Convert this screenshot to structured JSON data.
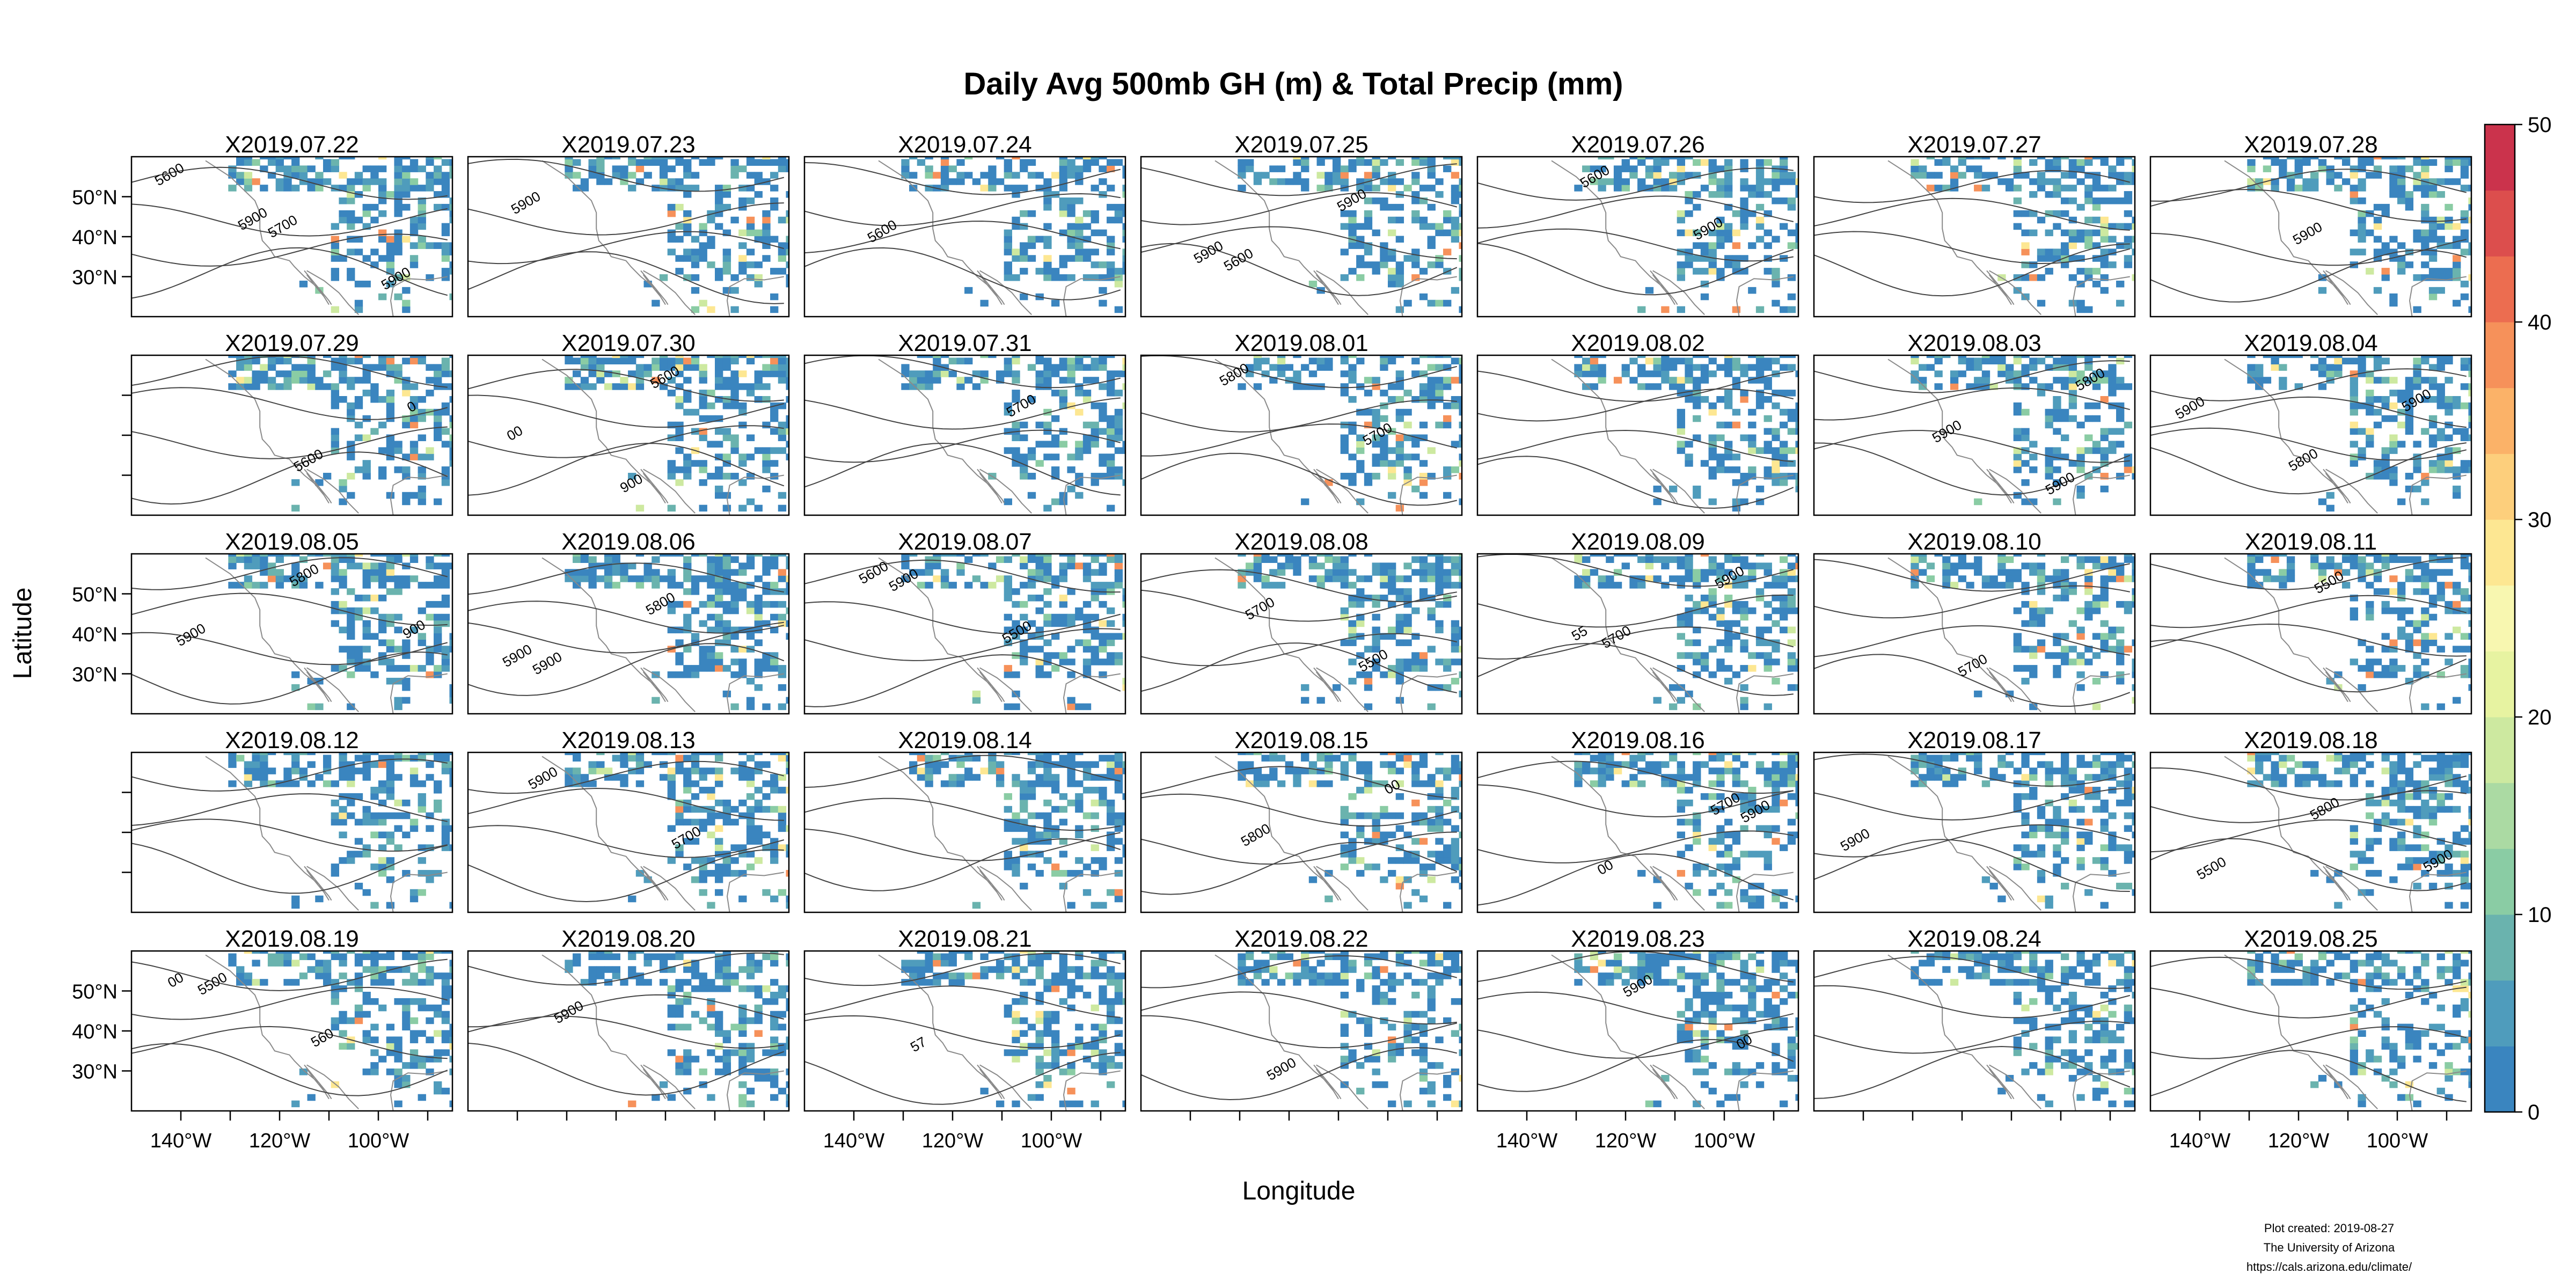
{
  "chart_data": {
    "type": "heatmap",
    "title": "Daily Avg 500mb GH (m) & Total Precip (mm)",
    "xlabel": "Longitude",
    "ylabel": "Latitude",
    "layout": {
      "rows": 5,
      "cols": 7
    },
    "panels": [
      "X2019.07.22",
      "X2019.07.23",
      "X2019.07.24",
      "X2019.07.25",
      "X2019.07.26",
      "X2019.07.27",
      "X2019.07.28",
      "X2019.07.29",
      "X2019.07.30",
      "X2019.07.31",
      "X2019.08.01",
      "X2019.08.02",
      "X2019.08.03",
      "X2019.08.04",
      "X2019.08.05",
      "X2019.08.06",
      "X2019.08.07",
      "X2019.08.08",
      "X2019.08.09",
      "X2019.08.10",
      "X2019.08.11",
      "X2019.08.12",
      "X2019.08.13",
      "X2019.08.14",
      "X2019.08.15",
      "X2019.08.16",
      "X2019.08.17",
      "X2019.08.18",
      "X2019.08.19",
      "X2019.08.20",
      "X2019.08.21",
      "X2019.08.22",
      "X2019.08.23",
      "X2019.08.24",
      "X2019.08.25"
    ],
    "x_range": [
      -150,
      -85
    ],
    "y_range": [
      20,
      60
    ],
    "x_ticks": [
      -140,
      -120,
      -100
    ],
    "x_tick_labels": [
      "140°W",
      "120°W",
      "100°W"
    ],
    "y_ticks": [
      30,
      40,
      50
    ],
    "y_tick_labels": [
      "30°N",
      "40°N",
      "50°N"
    ],
    "contour_labels": [
      [
        "5600",
        "5700",
        "5900",
        "5900"
      ],
      [
        "5900"
      ],
      [
        "5600"
      ],
      [
        "5600",
        "5900",
        "5900"
      ],
      [
        "5600",
        "5900"
      ],
      [],
      [
        "5900"
      ],
      [
        "5600",
        "0"
      ],
      [
        "5600",
        "00",
        "900"
      ],
      [
        "5700"
      ],
      [
        "5700",
        "5800"
      ],
      [],
      [
        "5800",
        "5900",
        "5900"
      ],
      [
        "5900",
        "5800",
        "5900"
      ],
      [
        "5900",
        "5800",
        "900"
      ],
      [
        "5900",
        "5800",
        "5900"
      ],
      [
        "5900",
        "5500",
        "5600"
      ],
      [
        "5700",
        "5500"
      ],
      [
        "5700",
        "5900",
        "55"
      ],
      [
        "5700"
      ],
      [
        "5500"
      ],
      [],
      [
        "5700",
        "5900"
      ],
      [],
      [
        "00",
        "5800"
      ],
      [
        "5900",
        "00",
        "5700"
      ],
      [
        "5900"
      ],
      [
        "5500",
        "5800",
        "5900"
      ],
      [
        "5500",
        "560",
        "00"
      ],
      [
        "5900"
      ],
      [
        "57"
      ],
      [
        "5900"
      ],
      [
        "5900",
        "00"
      ],
      [],
      []
    ],
    "colorbar": {
      "range": [
        0,
        50
      ],
      "ticks": [
        0,
        10,
        20,
        30,
        40,
        50
      ],
      "tick_labels": [
        "0",
        "10",
        "20",
        "30",
        "40",
        "50"
      ],
      "colors": [
        "#3a85bf",
        "#4f9cbc",
        "#6ab3ae",
        "#8acca4",
        "#abdaa3",
        "#cde9a0",
        "#e7f3a1",
        "#f8f7b0",
        "#fde792",
        "#fdcf7c",
        "#fbb268",
        "#f6915a",
        "#ec6d50",
        "#dc4e4d",
        "#cb334c"
      ]
    },
    "grid": false,
    "legend": "colorbar-right"
  },
  "footer": {
    "line1": "Plot created: 2019-08-27",
    "line2": "The University of Arizona",
    "line3": "https://cals.arizona.edu/climate/"
  }
}
